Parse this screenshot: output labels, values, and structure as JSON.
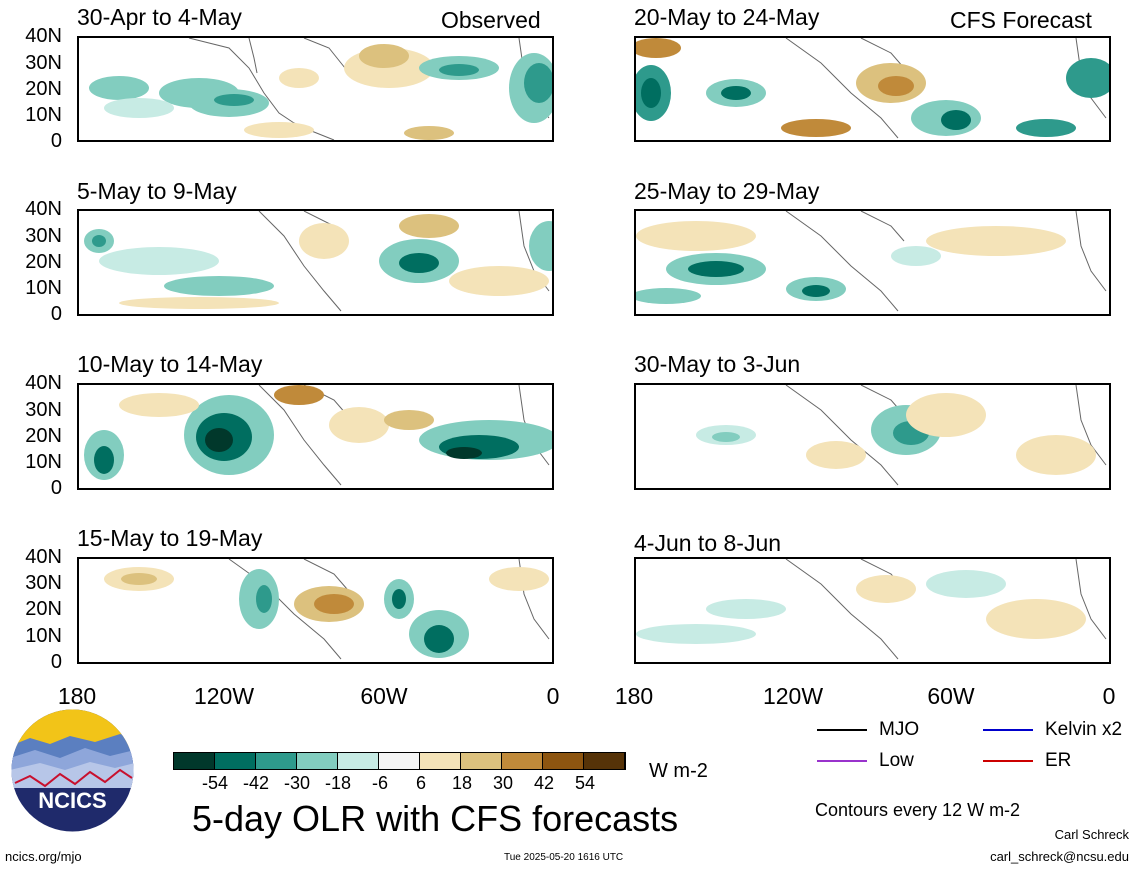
{
  "panels": [
    {
      "title": "30-Apr to 4-May",
      "tag": "Observed"
    },
    {
      "title": "20-May to 24-May",
      "tag": "CFS Forecast"
    },
    {
      "title": "5-May to 9-May",
      "tag": ""
    },
    {
      "title": "25-May to 29-May",
      "tag": ""
    },
    {
      "title": "10-May to 14-May",
      "tag": ""
    },
    {
      "title": "30-May to 3-Jun",
      "tag": ""
    },
    {
      "title": "15-May to 19-May",
      "tag": ""
    },
    {
      "title": "4-Jun to 8-Jun",
      "tag": ""
    }
  ],
  "lat_labels": [
    "40N",
    "30N",
    "20N",
    "10N",
    "0"
  ],
  "lon_labels": [
    "180",
    "120W",
    "60W",
    "0"
  ],
  "colorbar": {
    "colors": [
      "#01382b",
      "#006e60",
      "#2e9a8c",
      "#82cdbf",
      "#c7ebe4",
      "#f5f5f5",
      "#f4e3b8",
      "#dcc17e",
      "#c08a3a",
      "#8d5510",
      "#563308"
    ],
    "labels": [
      "-54",
      "-42",
      "-30",
      "-18",
      "-6",
      "6",
      "18",
      "30",
      "42",
      "54"
    ],
    "units": "W m-2"
  },
  "legend": {
    "items": [
      {
        "label": "MJO",
        "color": "#000000"
      },
      {
        "label": "Kelvin x2",
        "color": "#0000cc"
      },
      {
        "label": "Low",
        "color": "#9933cc"
      },
      {
        "label": "ER",
        "color": "#cc0000"
      }
    ],
    "contours_note": "Contours every 12 W m-2"
  },
  "logo_text": "NCICS",
  "main_title": "5-day OLR with CFS forecasts",
  "footer": {
    "url": "ncics.org/mjo",
    "timestamp": "Tue 2025-05-20 1616 UTC",
    "author": "Carl Schreck",
    "email": "carl_schreck@ncsu.edu"
  }
}
